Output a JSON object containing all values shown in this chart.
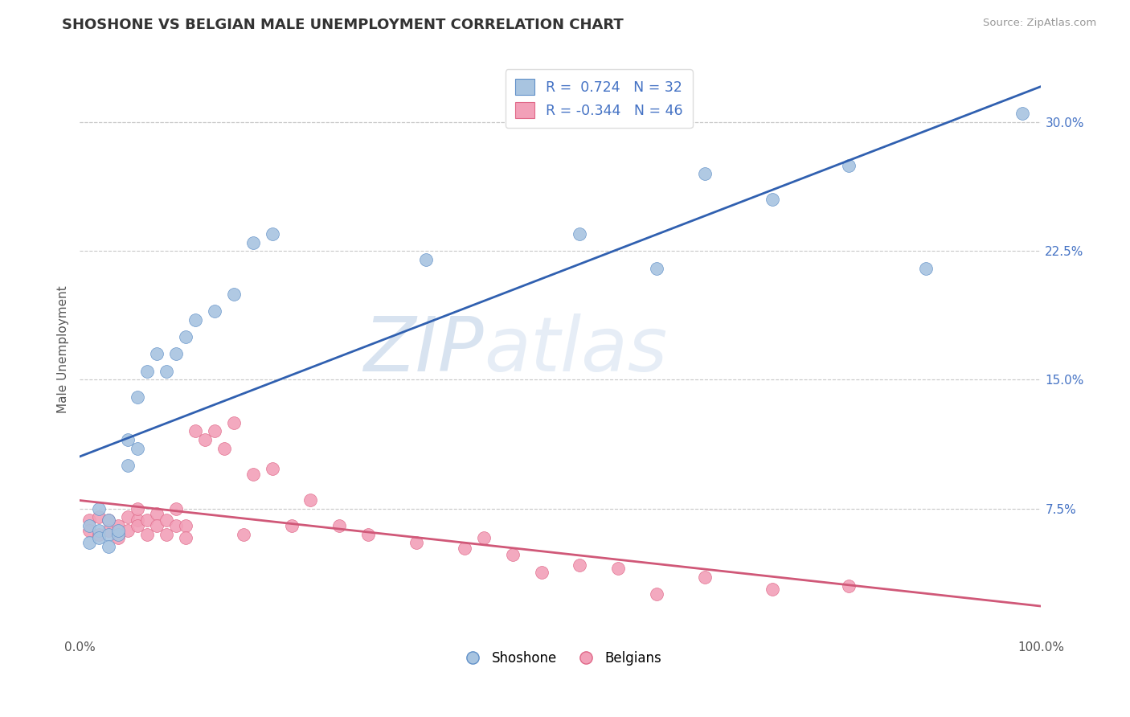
{
  "title": "SHOSHONE VS BELGIAN MALE UNEMPLOYMENT CORRELATION CHART",
  "source_text": "Source: ZipAtlas.com",
  "ylabel": "Male Unemployment",
  "watermark_zip": "ZIP",
  "watermark_atlas": "atlas",
  "xlim": [
    0.0,
    1.0
  ],
  "ylim": [
    0.0,
    0.335
  ],
  "xtick_positions": [
    0.0,
    1.0
  ],
  "xtick_labels": [
    "0.0%",
    "100.0%"
  ],
  "ytick_positions": [
    0.0,
    0.075,
    0.15,
    0.225,
    0.3
  ],
  "ytick_labels": [
    "",
    "7.5%",
    "15.0%",
    "22.5%",
    "30.0%"
  ],
  "grid_yticks": [
    0.075,
    0.15,
    0.225,
    0.3
  ],
  "grid_color": "#c8c8c8",
  "shoshone_color": "#a8c4e0",
  "belgian_color": "#f2a0b8",
  "shoshone_edge_color": "#6090c8",
  "belgian_edge_color": "#e06888",
  "shoshone_line_color": "#3060b0",
  "belgian_line_color": "#d05878",
  "shoshone_R": 0.724,
  "shoshone_N": 32,
  "belgian_R": -0.344,
  "belgian_N": 46,
  "legend_label_1": "Shoshone",
  "legend_label_2": "Belgians",
  "shoshone_x": [
    0.01,
    0.01,
    0.02,
    0.02,
    0.02,
    0.03,
    0.03,
    0.03,
    0.04,
    0.04,
    0.05,
    0.05,
    0.06,
    0.06,
    0.07,
    0.08,
    0.09,
    0.1,
    0.11,
    0.12,
    0.14,
    0.16,
    0.18,
    0.2,
    0.36,
    0.52,
    0.6,
    0.65,
    0.72,
    0.8,
    0.88,
    0.98
  ],
  "shoshone_y": [
    0.065,
    0.055,
    0.075,
    0.062,
    0.058,
    0.068,
    0.06,
    0.053,
    0.06,
    0.062,
    0.115,
    0.1,
    0.11,
    0.14,
    0.155,
    0.165,
    0.155,
    0.165,
    0.175,
    0.185,
    0.19,
    0.2,
    0.23,
    0.235,
    0.22,
    0.235,
    0.215,
    0.27,
    0.255,
    0.275,
    0.215,
    0.305
  ],
  "belgian_x": [
    0.01,
    0.01,
    0.02,
    0.02,
    0.03,
    0.03,
    0.04,
    0.04,
    0.05,
    0.05,
    0.06,
    0.06,
    0.06,
    0.07,
    0.07,
    0.08,
    0.08,
    0.09,
    0.09,
    0.1,
    0.1,
    0.11,
    0.11,
    0.12,
    0.13,
    0.14,
    0.15,
    0.16,
    0.17,
    0.18,
    0.2,
    0.22,
    0.24,
    0.27,
    0.3,
    0.35,
    0.4,
    0.42,
    0.45,
    0.48,
    0.52,
    0.56,
    0.6,
    0.65,
    0.72,
    0.8
  ],
  "belgian_y": [
    0.068,
    0.062,
    0.07,
    0.06,
    0.068,
    0.062,
    0.065,
    0.058,
    0.07,
    0.062,
    0.068,
    0.065,
    0.075,
    0.068,
    0.06,
    0.072,
    0.065,
    0.068,
    0.06,
    0.065,
    0.075,
    0.065,
    0.058,
    0.12,
    0.115,
    0.12,
    0.11,
    0.125,
    0.06,
    0.095,
    0.098,
    0.065,
    0.08,
    0.065,
    0.06,
    0.055,
    0.052,
    0.058,
    0.048,
    0.038,
    0.042,
    0.04,
    0.025,
    0.035,
    0.028,
    0.03
  ]
}
